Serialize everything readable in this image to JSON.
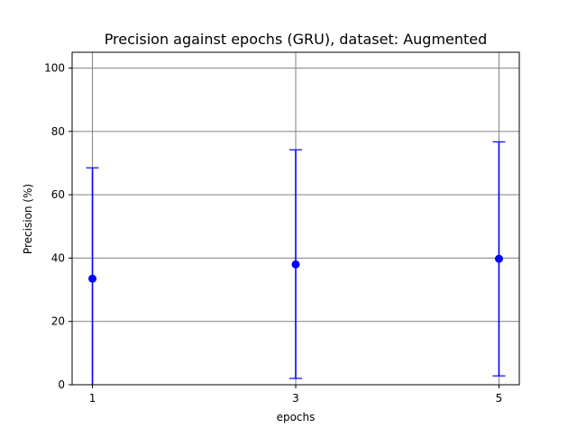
{
  "chart_data": {
    "type": "scatter",
    "title": "Precision against epochs (GRU), dataset: Augmented",
    "xlabel": "epochs",
    "ylabel": "Precision (%)",
    "x_ticks": [
      1,
      3,
      5
    ],
    "y_ticks": [
      0,
      20,
      40,
      60,
      80,
      100
    ],
    "xlim": [
      0.8,
      5.2
    ],
    "ylim": [
      0,
      105
    ],
    "grid": true,
    "series": [
      {
        "x": [
          1,
          3,
          5
        ],
        "y": [
          33.5,
          38.0,
          39.8
        ],
        "error_low": [
          0.0,
          2.0,
          2.8
        ],
        "error_high": [
          68.5,
          74.2,
          76.7
        ],
        "color": "#0000ff",
        "marker": "circle"
      }
    ],
    "grid_color": "#808080"
  }
}
